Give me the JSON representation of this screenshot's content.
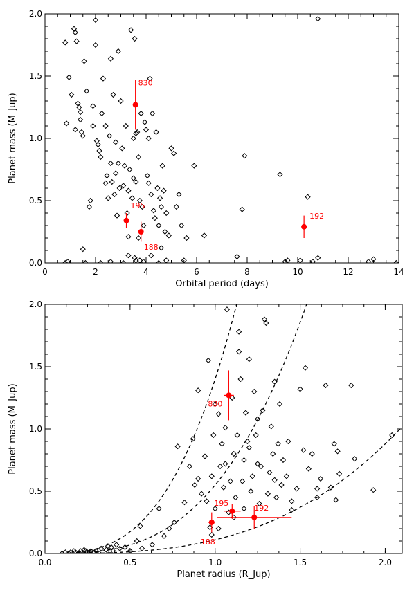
{
  "colors": {
    "axis": "#000000",
    "highlight": "#ff0000"
  },
  "chart_data": [
    {
      "type": "scatter",
      "name": "top",
      "xlabel": "Orbital period (days)",
      "ylabel": "Planet mass (M_Jup)",
      "xlim": [
        0,
        14
      ],
      "ylim": [
        0,
        2
      ],
      "xticks": [
        0,
        2,
        4,
        6,
        8,
        10,
        12,
        14
      ],
      "yticks": [
        0.0,
        0.5,
        1.0,
        1.5,
        2.0
      ],
      "xtick_labels": [
        "0",
        "2",
        "4",
        "6",
        "8",
        "10",
        "12",
        "14"
      ],
      "ytick_labels": [
        "0.0",
        "0.5",
        "1.0",
        "1.5",
        "2.0"
      ],
      "points": [
        [
          0.8,
          1.77
        ],
        [
          0.85,
          1.12
        ],
        [
          0.95,
          1.49
        ],
        [
          1.05,
          1.35
        ],
        [
          1.15,
          1.88
        ],
        [
          1.2,
          1.85
        ],
        [
          1.25,
          1.78
        ],
        [
          1.3,
          1.28
        ],
        [
          1.35,
          1.25
        ],
        [
          1.4,
          1.21
        ],
        [
          1.45,
          1.05
        ],
        [
          1.5,
          1.02
        ],
        [
          1.55,
          1.62
        ],
        [
          1.65,
          1.38
        ],
        [
          1.75,
          0.45
        ],
        [
          1.8,
          0.5
        ],
        [
          1.9,
          1.1
        ],
        [
          2.0,
          1.75
        ],
        [
          2.05,
          0.98
        ],
        [
          2.1,
          0.95
        ],
        [
          2.15,
          0.9
        ],
        [
          2.2,
          0.85
        ],
        [
          2.25,
          1.2
        ],
        [
          2.3,
          1.48
        ],
        [
          2.4,
          1.1
        ],
        [
          2.45,
          0.7
        ],
        [
          2.5,
          0.52
        ],
        [
          2.55,
          1.02
        ],
        [
          2.6,
          0.8
        ],
        [
          2.65,
          0.65
        ],
        [
          2.7,
          1.35
        ],
        [
          2.75,
          0.55
        ],
        [
          2.8,
          0.72
        ],
        [
          2.85,
          0.38
        ],
        [
          2.9,
          1.7
        ],
        [
          2.95,
          0.6
        ],
        [
          3.0,
          1.3
        ],
        [
          3.05,
          0.92
        ],
        [
          3.1,
          0.62
        ],
        [
          3.15,
          0.78
        ],
        [
          3.2,
          1.1
        ],
        [
          3.25,
          0.4
        ],
        [
          3.3,
          0.58
        ],
        [
          3.35,
          0.75
        ],
        [
          3.4,
          1.87
        ],
        [
          3.45,
          0.52
        ],
        [
          3.5,
          1.0
        ],
        [
          3.55,
          1.8
        ],
        [
          3.6,
          0.65
        ],
        [
          3.65,
          1.05
        ],
        [
          3.7,
          0.85
        ],
        [
          3.75,
          0.5
        ],
        [
          3.8,
          1.2
        ],
        [
          3.85,
          0.45
        ],
        [
          3.9,
          0.3
        ],
        [
          3.95,
          1.13
        ],
        [
          4.0,
          1.07
        ],
        [
          4.05,
          0.7
        ],
        [
          4.1,
          1.0
        ],
        [
          4.15,
          1.48
        ],
        [
          4.2,
          0.55
        ],
        [
          4.25,
          1.2
        ],
        [
          4.3,
          0.42
        ],
        [
          4.35,
          0.36
        ],
        [
          4.4,
          1.05
        ],
        [
          4.45,
          0.6
        ],
        [
          4.5,
          0.3
        ],
        [
          4.55,
          0.52
        ],
        [
          4.6,
          0.45
        ],
        [
          4.65,
          0.78
        ],
        [
          4.7,
          0.58
        ],
        [
          4.75,
          0.25
        ],
        [
          4.8,
          0.4
        ],
        [
          4.9,
          0.22
        ],
        [
          5.0,
          0.92
        ],
        [
          5.1,
          0.88
        ],
        [
          5.2,
          0.45
        ],
        [
          5.3,
          0.55
        ],
        [
          5.4,
          0.3
        ],
        [
          5.6,
          0.2
        ],
        [
          5.9,
          0.78
        ],
        [
          6.3,
          0.22
        ],
        [
          7.6,
          0.05
        ],
        [
          7.8,
          0.43
        ],
        [
          7.9,
          0.86
        ],
        [
          9.3,
          0.71
        ],
        [
          9.5,
          0.01
        ],
        [
          9.6,
          0.02
        ],
        [
          10.1,
          0.02
        ],
        [
          10.4,
          0.53
        ],
        [
          10.6,
          0.01
        ],
        [
          10.8,
          0.04
        ],
        [
          10.8,
          1.96
        ],
        [
          12.8,
          0.01
        ],
        [
          13.0,
          0.03
        ],
        [
          13.9,
          0.0
        ],
        [
          0.8,
          0.0
        ],
        [
          0.9,
          0.01
        ],
        [
          1.6,
          0.0
        ],
        [
          1.5,
          0.11
        ],
        [
          2.2,
          0.0
        ],
        [
          2.6,
          0.01
        ],
        [
          3.3,
          0.06
        ],
        [
          3.9,
          0.01
        ],
        [
          3.6,
          0.02
        ],
        [
          4.5,
          0.0
        ],
        [
          4.2,
          0.06
        ],
        [
          3.3,
          0.21
        ],
        [
          3.55,
          0.04
        ],
        [
          3.75,
          0.02
        ],
        [
          3.1,
          0.0
        ],
        [
          5.5,
          0.02
        ],
        [
          4.6,
          0.12
        ],
        [
          4.8,
          0.02
        ],
        [
          2.0,
          1.95
        ],
        [
          2.6,
          1.64
        ],
        [
          3.6,
          1.04
        ],
        [
          1.9,
          1.26
        ],
        [
          2.4,
          0.64
        ],
        [
          2.8,
          0.97
        ],
        [
          3.5,
          0.68
        ],
        [
          4.1,
          0.64
        ],
        [
          1.2,
          1.07
        ],
        [
          1.4,
          1.15
        ],
        [
          3.7,
          0.2
        ],
        [
          2.9,
          0.8
        ]
      ],
      "highlights": [
        {
          "label": "830",
          "x": 3.58,
          "y": 1.27,
          "yerr": 0.2
        },
        {
          "label": "195",
          "x": 3.22,
          "y": 0.34,
          "yerr": 0.06
        },
        {
          "label": "188",
          "x": 3.8,
          "y": 0.25,
          "yerr": 0.08
        },
        {
          "label": "192",
          "x": 10.25,
          "y": 0.29,
          "yerr": 0.09
        }
      ]
    },
    {
      "type": "scatter",
      "name": "bottom",
      "xlabel": "Planet radius (R_Jup)",
      "ylabel": "Planet mass (M_Jup)",
      "xlim": [
        0,
        2.1
      ],
      "ylim": [
        0,
        2
      ],
      "xticks": [
        0.0,
        0.5,
        1.0,
        1.5,
        2.0
      ],
      "yticks": [
        0.0,
        0.5,
        1.0,
        1.5,
        2.0
      ],
      "xtick_labels": [
        "0.0",
        "0.5",
        "1.0",
        "1.5",
        "2.0"
      ],
      "ytick_labels": [
        "0.0",
        "0.5",
        "1.0",
        "1.5",
        "2.0"
      ],
      "curve_coefficients": [
        1.4,
        0.55,
        0.11
      ],
      "points": [
        [
          0.1,
          0.0
        ],
        [
          0.12,
          0.01
        ],
        [
          0.14,
          0.0
        ],
        [
          0.15,
          0.01
        ],
        [
          0.17,
          0.02
        ],
        [
          0.18,
          0.01
        ],
        [
          0.2,
          0.0
        ],
        [
          0.21,
          0.02
        ],
        [
          0.22,
          0.01
        ],
        [
          0.23,
          0.03
        ],
        [
          0.24,
          0.02
        ],
        [
          0.25,
          0.01
        ],
        [
          0.26,
          0.0
        ],
        [
          0.27,
          0.02
        ],
        [
          0.29,
          0.01
        ],
        [
          0.3,
          0.02
        ],
        [
          0.32,
          0.0
        ],
        [
          0.33,
          0.04
        ],
        [
          0.36,
          0.03
        ],
        [
          0.37,
          0.06
        ],
        [
          0.39,
          0.05
        ],
        [
          0.4,
          0.02
        ],
        [
          0.42,
          0.07
        ],
        [
          0.44,
          0.04
        ],
        [
          0.47,
          0.05
        ],
        [
          0.5,
          0.02
        ],
        [
          0.54,
          0.1
        ],
        [
          0.56,
          0.22
        ],
        [
          0.57,
          0.04
        ],
        [
          0.63,
          0.07
        ],
        [
          0.67,
          0.36
        ],
        [
          0.7,
          0.14
        ],
        [
          0.73,
          0.2
        ],
        [
          0.76,
          0.25
        ],
        [
          0.78,
          0.86
        ],
        [
          0.82,
          0.41
        ],
        [
          0.85,
          0.7
        ],
        [
          0.87,
          0.92
        ],
        [
          0.88,
          0.55
        ],
        [
          0.9,
          0.6
        ],
        [
          0.9,
          1.31
        ],
        [
          0.92,
          0.48
        ],
        [
          0.94,
          0.78
        ],
        [
          0.95,
          0.42
        ],
        [
          0.96,
          1.55
        ],
        [
          0.97,
          0.21
        ],
        [
          0.98,
          0.62
        ],
        [
          0.99,
          0.95
        ],
        [
          1.0,
          0.36
        ],
        [
          1.02,
          1.12
        ],
        [
          1.03,
          0.7
        ],
        [
          1.04,
          0.88
        ],
        [
          1.05,
          0.53
        ],
        [
          1.06,
          1.01
        ],
        [
          1.07,
          1.96
        ],
        [
          1.08,
          0.33
        ],
        [
          1.09,
          0.58
        ],
        [
          1.1,
          1.25
        ],
        [
          1.11,
          0.8
        ],
        [
          1.12,
          0.45
        ],
        [
          1.13,
          0.95
        ],
        [
          1.14,
          1.62
        ],
        [
          1.15,
          1.4
        ],
        [
          1.16,
          0.58
        ],
        [
          1.17,
          0.75
        ],
        [
          1.18,
          1.13
        ],
        [
          1.19,
          0.9
        ],
        [
          1.2,
          1.56
        ],
        [
          1.21,
          0.5
        ],
        [
          1.22,
          0.62
        ],
        [
          1.23,
          1.3
        ],
        [
          1.24,
          0.95
        ],
        [
          1.25,
          1.08
        ],
        [
          1.26,
          0.4
        ],
        [
          1.27,
          0.7
        ],
        [
          1.28,
          1.15
        ],
        [
          1.29,
          1.88
        ],
        [
          1.3,
          1.85
        ],
        [
          1.31,
          0.48
        ],
        [
          1.32,
          0.65
        ],
        [
          1.33,
          1.02
        ],
        [
          1.34,
          0.8
        ],
        [
          1.35,
          1.38
        ],
        [
          1.36,
          0.45
        ],
        [
          1.37,
          0.88
        ],
        [
          1.38,
          1.2
        ],
        [
          1.39,
          0.55
        ],
        [
          1.4,
          0.75
        ],
        [
          1.42,
          0.62
        ],
        [
          1.43,
          0.9
        ],
        [
          1.45,
          0.42
        ],
        [
          1.48,
          0.52
        ],
        [
          1.5,
          1.32
        ],
        [
          1.52,
          0.83
        ],
        [
          1.53,
          1.49
        ],
        [
          1.55,
          0.68
        ],
        [
          1.57,
          0.8
        ],
        [
          1.6,
          0.45
        ],
        [
          1.62,
          0.6
        ],
        [
          1.65,
          1.35
        ],
        [
          1.68,
          0.53
        ],
        [
          1.7,
          0.88
        ],
        [
          1.72,
          0.82
        ],
        [
          1.73,
          0.64
        ],
        [
          1.8,
          1.35
        ],
        [
          1.82,
          0.76
        ],
        [
          1.93,
          0.51
        ],
        [
          2.04,
          0.95
        ],
        [
          1.71,
          0.43
        ],
        [
          1.6,
          0.52
        ],
        [
          1.25,
          0.72
        ],
        [
          1.17,
          0.36
        ],
        [
          1.11,
          0.29
        ],
        [
          1.02,
          0.2
        ],
        [
          0.98,
          0.15
        ],
        [
          1.35,
          0.59
        ],
        [
          1.14,
          1.78
        ],
        [
          1.0,
          1.2
        ],
        [
          1.06,
          0.72
        ],
        [
          1.2,
          0.85
        ],
        [
          1.45,
          0.35
        ]
      ],
      "highlights": [
        {
          "label": "830",
          "x": 1.08,
          "y": 1.27,
          "yerr": 0.2,
          "xerr": 0.03
        },
        {
          "label": "195",
          "x": 1.1,
          "y": 0.34,
          "yerr": 0.06,
          "xerr": 0.05
        },
        {
          "label": "188",
          "x": 0.98,
          "y": 0.25,
          "yerr": 0.08,
          "xerr": 0.02
        },
        {
          "label": "192",
          "x": 1.23,
          "y": 0.29,
          "yerr": 0.09,
          "xerr": 0.22
        }
      ]
    }
  ]
}
